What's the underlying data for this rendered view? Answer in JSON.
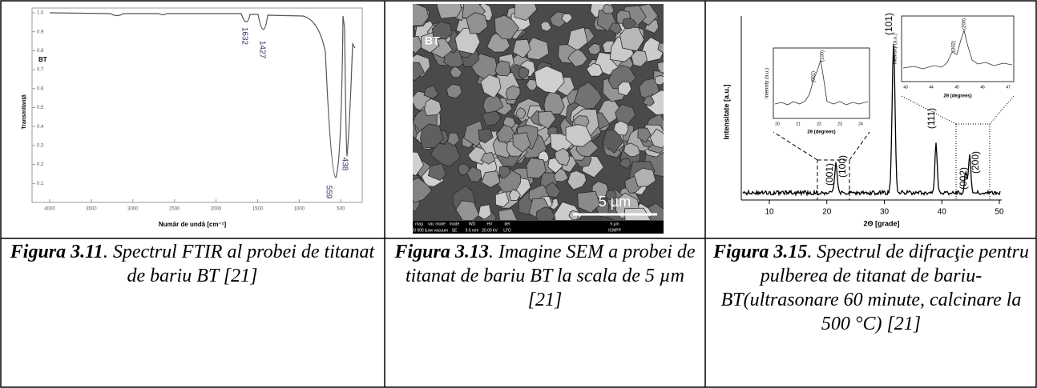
{
  "figures": [
    {
      "plot": {
        "sample_label": "BT",
        "y_axis_label": "Transmitanţă",
        "x_axis_label": "Număr de undă [cm⁻¹]",
        "y_ticks": [
          "1.0",
          "0.9",
          "0.8",
          "0.7",
          "0.6",
          "0.5",
          "0.4",
          "0.3",
          "0.2",
          "0.1"
        ],
        "x_ticks": [
          "4000",
          "3500",
          "3000",
          "2500",
          "2000",
          "1500",
          "1000",
          "500"
        ],
        "peak_labels": [
          "1632",
          "1427",
          "559",
          "438"
        ]
      },
      "caption": {
        "number": "Figura 3.11",
        "text": ". Spectrul FTIR al probei de titanat de bariu BT [21]"
      }
    },
    {
      "image": {
        "sample_label": "BT",
        "scale_label": "5 µm",
        "info_headers": [
          "mag",
          "vac mode",
          "mode",
          "WD",
          "HV",
          "det"
        ],
        "info_values": [
          "20 000 x",
          "Low vacuum",
          "SE",
          "9.5 mm",
          "20.00 kV",
          "LFD"
        ],
        "info_scale": "5 µm",
        "info_lab": "ICMPP"
      },
      "caption": {
        "number": "Figura 3.13",
        "text": ". Imagine SEM a probei de titanat de bariu BT la scala de 5 µm [21]"
      }
    },
    {
      "plot": {
        "y_axis_label": "Intensitate [a.u.]",
        "x_axis_label": "2Θ [grade]",
        "x_ticks": [
          "10",
          "20",
          "30",
          "40",
          "50"
        ],
        "peak_labels": [
          "(001)",
          "(100)",
          "(101)",
          "(111)",
          "(002)",
          "(200)"
        ],
        "inset_left": {
          "y_axis_label": "Intensity (a.u.)",
          "x_axis_label": "2θ (degrees)",
          "x_ticks": [
            "20",
            "21",
            "22",
            "23",
            "24"
          ],
          "peak_labels": [
            "(001)",
            "(100)"
          ]
        },
        "inset_right": {
          "y_axis_label": "Intensity (a.u.)",
          "x_axis_label": "2θ (degrees)",
          "x_ticks": [
            "43",
            "44",
            "45",
            "46",
            "47"
          ],
          "peak_labels": [
            "(002)",
            "(200)"
          ]
        }
      },
      "caption": {
        "number": "Figura 3.15",
        "text": ". Spectrul de difracţie pentru pulberea de titanat de bariu-BT(ultrasonare 60 minute, calcinare la 500 °C) [21]"
      }
    }
  ]
}
